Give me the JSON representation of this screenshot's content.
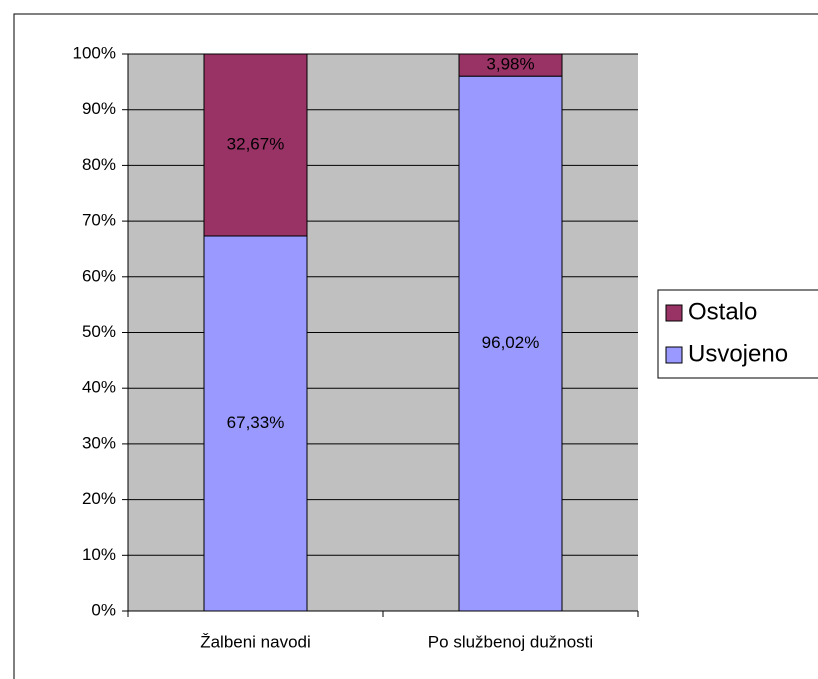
{
  "chart_data": {
    "type": "stacked_bar",
    "categories": [
      "Žalbeni navodi",
      "Po službenoj dužnosti"
    ],
    "series": [
      {
        "name": "Usvojeno",
        "color": "#9999ff",
        "values": [
          67.33,
          96.02
        ],
        "value_labels": [
          "67,33%",
          "96,02%"
        ]
      },
      {
        "name": "Ostalo",
        "color": "#993366",
        "values": [
          32.67,
          3.98
        ],
        "value_labels": [
          "32,67%",
          "3,98%"
        ]
      }
    ],
    "ylim": [
      0,
      100
    ],
    "yticks": [
      {
        "value": 0,
        "label": "0%"
      },
      {
        "value": 10,
        "label": "10%"
      },
      {
        "value": 20,
        "label": "20%"
      },
      {
        "value": 30,
        "label": "30%"
      },
      {
        "value": 40,
        "label": "40%"
      },
      {
        "value": 50,
        "label": "50%"
      },
      {
        "value": 60,
        "label": "60%"
      },
      {
        "value": 70,
        "label": "70%"
      },
      {
        "value": 80,
        "label": "80%"
      },
      {
        "value": 90,
        "label": "90%"
      },
      {
        "value": 100,
        "label": "100%"
      }
    ],
    "grid": true,
    "plot_background": "#c0c0c0",
    "legend": "right"
  }
}
